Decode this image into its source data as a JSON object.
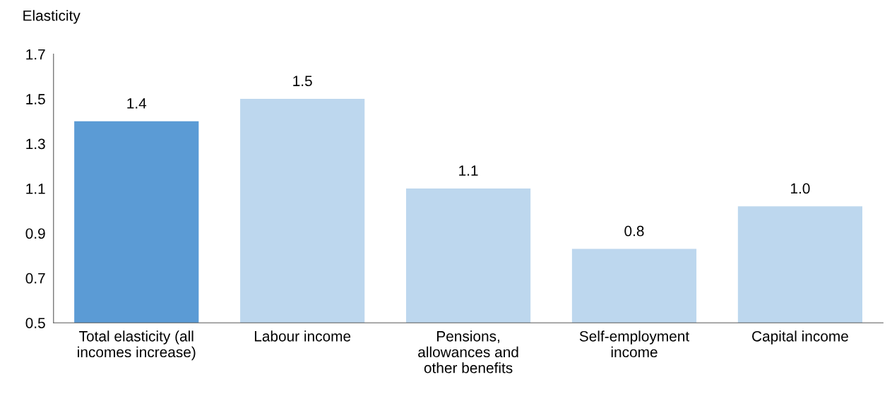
{
  "chart_data": {
    "type": "bar",
    "ylabel": "Elasticity",
    "categories": [
      "Total elasticity (all\nincomes increase)",
      "Labour income",
      "Pensions,\nallowances and\nother benefits",
      "Self-employment\nincome",
      "Capital income"
    ],
    "values": [
      1.4,
      1.5,
      1.1,
      0.83,
      1.02
    ],
    "colors": [
      "#5b9bd5",
      "#bdd7ee",
      "#bdd7ee",
      "#bdd7ee",
      "#bdd7ee"
    ],
    "value_labels": [
      "1.4",
      "1.5",
      "1.1",
      "0.8",
      "1.0"
    ],
    "ylim": [
      0.5,
      1.7
    ],
    "yticks": [
      0.5,
      0.7,
      0.9,
      1.1,
      1.3,
      1.5,
      1.7
    ],
    "grid": false,
    "legend": false
  }
}
